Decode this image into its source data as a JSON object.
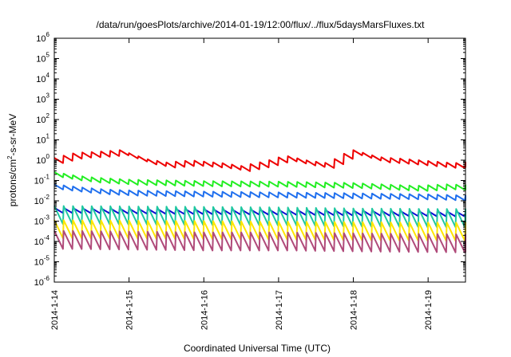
{
  "chart_data": {
    "type": "line",
    "title": "/data/run/goesPlots/archive/2014-01-19/12:00/flux/../flux/5daysMarsFluxes.txt",
    "xlabel": "Coordinated Universal Time (UTC)",
    "ylabel_parts": [
      "protons/cm",
      "2",
      "-s-sr-MeV"
    ],
    "y_scale": "log",
    "ylim_exponents": [
      -6,
      6
    ],
    "y_tick_base": "10",
    "y_tick_exponents": [
      "-6",
      "-5",
      "-4",
      "-3",
      "-2",
      "-1",
      "0",
      "1",
      "2",
      "3",
      "4",
      "5",
      "6"
    ],
    "xlim": [
      "2014-01-14",
      "2014-01-19T12:00"
    ],
    "x_ticks": [
      {
        "date": "2014-01-14",
        "label": "2014-1-14"
      },
      {
        "date": "2014-01-15",
        "label": "2014-1-15"
      },
      {
        "date": "2014-01-16",
        "label": "2014-1-16"
      },
      {
        "date": "2014-01-17",
        "label": "2014-1-17"
      },
      {
        "date": "2014-01-18",
        "label": "2014-1-18"
      },
      {
        "date": "2014-01-19",
        "label": "2014-1-19"
      }
    ],
    "x_tick_rotation": "vertical",
    "grid": false,
    "series": [
      {
        "color": "#ee0000",
        "style": "sawtooth",
        "points": [
          [
            "2014-01-14T00:00",
            1.0
          ],
          [
            "2014-01-14T07:00",
            1.8
          ],
          [
            "2014-01-14T14:00",
            2.0
          ],
          [
            "2014-01-14T21:00",
            2.4
          ],
          [
            "2014-01-15T06:00",
            0.85
          ],
          [
            "2014-01-15T12:00",
            0.6
          ],
          [
            "2014-01-15T20:00",
            0.75
          ],
          [
            "2014-01-16T06:00",
            0.55
          ],
          [
            "2014-01-16T12:00",
            0.4
          ],
          [
            "2014-01-16T20:00",
            0.7
          ],
          [
            "2014-01-17T02:00",
            1.3
          ],
          [
            "2014-01-17T10:00",
            0.7
          ],
          [
            "2014-01-17T16:00",
            0.55
          ],
          [
            "2014-01-17T20:00",
            1.4
          ],
          [
            "2014-01-18T00:00",
            2.4
          ],
          [
            "2014-01-18T08:00",
            1.1
          ],
          [
            "2014-01-18T16:00",
            0.9
          ],
          [
            "2014-01-19T00:00",
            0.7
          ],
          [
            "2014-01-19T08:00",
            0.55
          ],
          [
            "2014-01-19T12:00",
            0.6
          ]
        ]
      },
      {
        "color": "#22ee22",
        "style": "sawtooth",
        "points": [
          [
            "2014-01-14T00:00",
            0.2
          ],
          [
            "2014-01-14T06:00",
            0.14
          ],
          [
            "2014-01-14T12:00",
            0.11
          ],
          [
            "2014-01-15T00:00",
            0.085
          ],
          [
            "2014-01-16T00:00",
            0.072
          ],
          [
            "2014-01-17T00:00",
            0.068
          ],
          [
            "2014-01-18T00:00",
            0.058
          ],
          [
            "2014-01-18T20:00",
            0.042
          ],
          [
            "2014-01-19T06:00",
            0.05
          ],
          [
            "2014-01-19T12:00",
            0.046
          ]
        ]
      },
      {
        "color": "#1f6fee",
        "style": "sawtooth",
        "points": [
          [
            "2014-01-14T00:00",
            0.05
          ],
          [
            "2014-01-14T08:00",
            0.036
          ],
          [
            "2014-01-14T16:00",
            0.028
          ],
          [
            "2014-01-15T00:00",
            0.025
          ],
          [
            "2014-01-16T00:00",
            0.022
          ],
          [
            "2014-01-17T00:00",
            0.02
          ],
          [
            "2014-01-18T00:00",
            0.018
          ],
          [
            "2014-01-19T00:00",
            0.016
          ],
          [
            "2014-01-19T12:00",
            0.014
          ]
        ]
      },
      {
        "color": "#0b0bd2",
        "style": "sawtooth",
        "points": [
          [
            "2014-01-14T00:00",
            0.0035
          ],
          [
            "2014-01-15T00:00",
            0.0032
          ],
          [
            "2014-01-16T00:00",
            0.003
          ],
          [
            "2014-01-17T00:00",
            0.0028
          ],
          [
            "2014-01-18T00:00",
            0.0026
          ],
          [
            "2014-01-19T12:00",
            0.0023
          ]
        ]
      },
      {
        "color": "#1fc8a0",
        "style": "spiky",
        "points": [
          [
            "2014-01-14T00:00",
            0.002
          ],
          [
            "2014-01-15T00:00",
            0.0019
          ],
          [
            "2014-01-16T00:00",
            0.0018
          ],
          [
            "2014-01-17T00:00",
            0.0017
          ],
          [
            "2014-01-18T00:00",
            0.0015
          ],
          [
            "2014-01-19T12:00",
            0.0014
          ]
        ]
      },
      {
        "color": "#ffe600",
        "style": "spiky",
        "points": [
          [
            "2014-01-14T00:00",
            0.0004
          ],
          [
            "2014-01-15T00:00",
            0.00038
          ],
          [
            "2014-01-16T00:00",
            0.00036
          ],
          [
            "2014-01-17T00:00",
            0.00034
          ],
          [
            "2014-01-18T00:00",
            0.00032
          ],
          [
            "2014-01-19T12:00",
            0.0003
          ]
        ]
      },
      {
        "color": "#b04a7a",
        "style": "spiky",
        "points": [
          [
            "2014-01-14T00:00",
            0.00012
          ],
          [
            "2014-01-15T00:00",
            0.00011
          ],
          [
            "2014-01-16T00:00",
            0.0001
          ],
          [
            "2014-01-17T00:00",
            0.0001
          ],
          [
            "2014-01-18T00:00",
            9e-05
          ],
          [
            "2014-01-19T12:00",
            8e-05
          ]
        ]
      }
    ]
  }
}
